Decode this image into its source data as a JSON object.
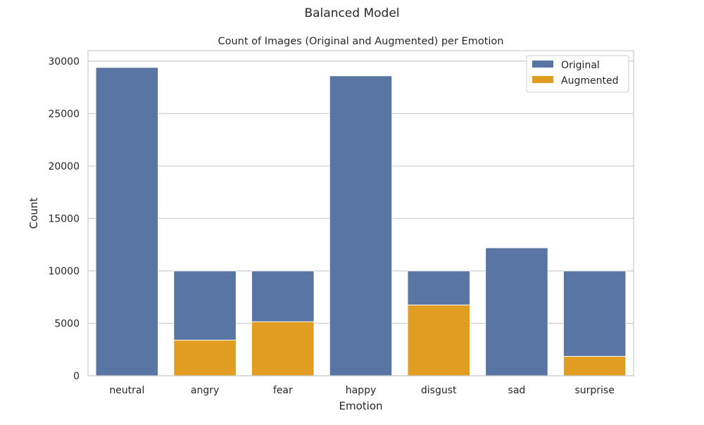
{
  "figure": {
    "suptitle": "Balanced Model"
  },
  "chart_data": {
    "type": "bar",
    "title": "Count of Images (Original and Augmented) per Emotion",
    "xlabel": "Emotion",
    "ylabel": "Count",
    "categories": [
      "neutral",
      "angry",
      "fear",
      "happy",
      "disgust",
      "sad",
      "surprise"
    ],
    "series": [
      {
        "name": "Original",
        "color": "#5875a4",
        "values": [
          29400,
          10000,
          10000,
          28600,
          10000,
          12200,
          10000
        ]
      },
      {
        "name": "Augmented",
        "color": "#e09d22",
        "values": [
          0,
          3400,
          5150,
          0,
          6750,
          0,
          1850
        ]
      }
    ],
    "ylim": [
      0,
      31000
    ],
    "yticks": [
      0,
      5000,
      10000,
      15000,
      20000,
      25000,
      30000
    ],
    "grid": true,
    "legend_position": "top-right",
    "overlay": true
  }
}
